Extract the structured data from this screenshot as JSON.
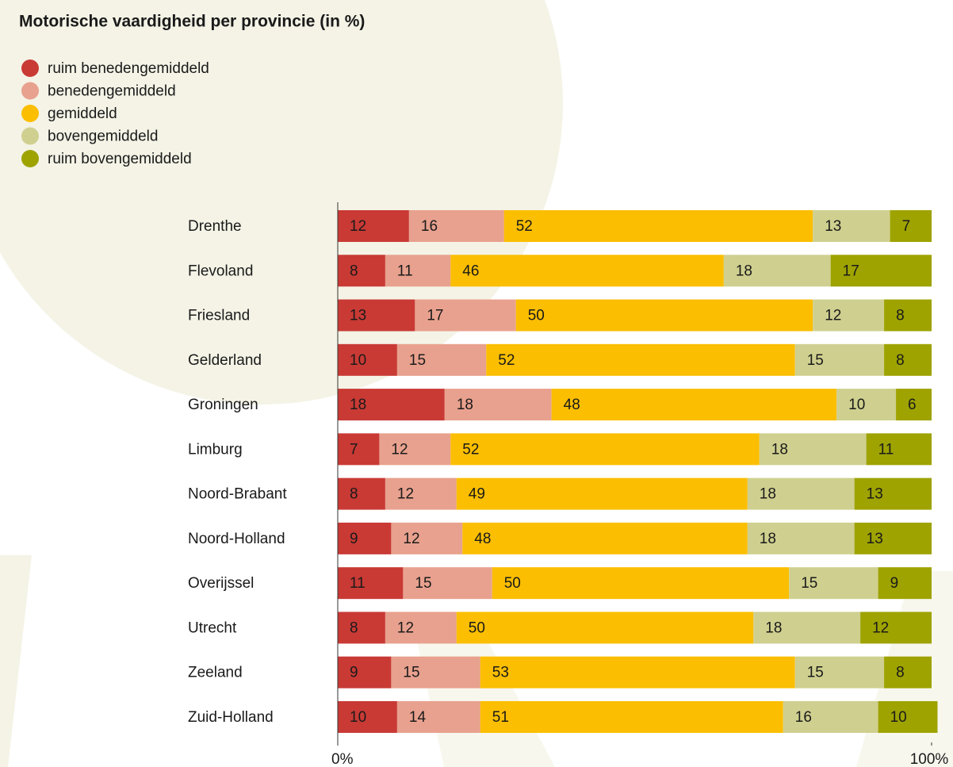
{
  "chart_data": {
    "type": "stacked-bar-horizontal",
    "title": "Motorische vaardigheid per provincie (in %)",
    "categories": [
      "Drenthe",
      "Flevoland",
      "Friesland",
      "Gelderland",
      "Groningen",
      "Limburg",
      "Noord-Brabant",
      "Noord-Holland",
      "Overijssel",
      "Utrecht",
      "Zeeland",
      "Zuid-Holland"
    ],
    "series": [
      {
        "name": "ruim benedengemiddeld",
        "color": "#c93a35",
        "values": [
          12,
          8,
          13,
          10,
          18,
          7,
          8,
          9,
          11,
          8,
          9,
          10
        ]
      },
      {
        "name": "benedengemiddeld",
        "color": "#e8a18e",
        "values": [
          16,
          11,
          17,
          15,
          18,
          12,
          12,
          12,
          15,
          12,
          15,
          14
        ]
      },
      {
        "name": "gemiddeld",
        "color": "#fbbe00",
        "values": [
          52,
          46,
          50,
          52,
          48,
          52,
          49,
          48,
          50,
          50,
          53,
          51
        ]
      },
      {
        "name": "bovengemiddeld",
        "color": "#cfd08f",
        "values": [
          13,
          18,
          12,
          15,
          10,
          18,
          18,
          18,
          15,
          18,
          15,
          16
        ]
      },
      {
        "name": "ruim bovengemiddeld",
        "color": "#9ea300",
        "values": [
          7,
          17,
          8,
          8,
          6,
          11,
          13,
          13,
          9,
          12,
          8,
          10
        ]
      }
    ],
    "xlim": [
      0,
      100
    ],
    "xticks": [
      {
        "value": 0,
        "label": "0%"
      },
      {
        "value": 100,
        "label": "100%"
      }
    ]
  }
}
